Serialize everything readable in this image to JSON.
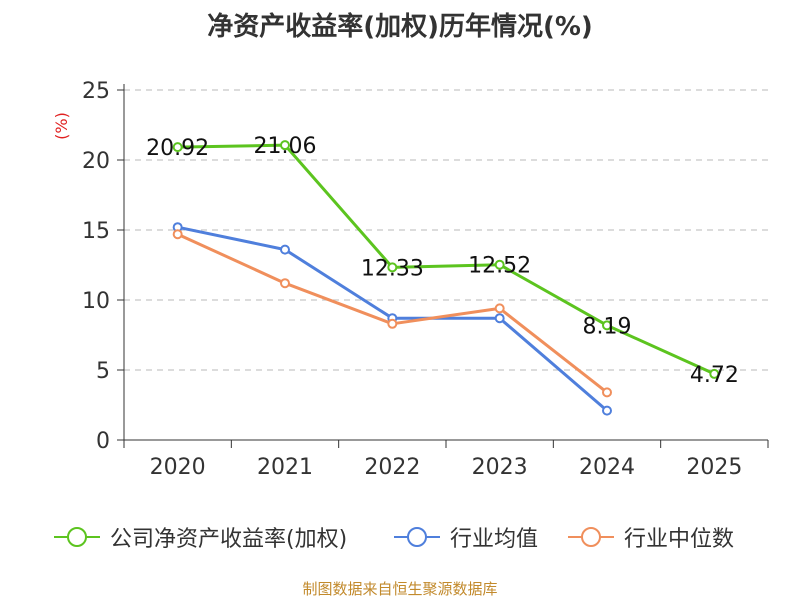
{
  "footer_text": "制图数据来自恒生聚源数据库",
  "colors": {
    "company": "#5cc41f",
    "industry_avg": "#4f7fdc",
    "industry_median": "#f08f5c",
    "ylabel": "#e02020",
    "grid": "#c8c8c8",
    "axis": "#333333"
  },
  "chart_data": {
    "type": "line",
    "title": "净资产收益率(加权)历年情况(%)",
    "xlabel": "",
    "ylabel": "(%)",
    "ylim": [
      0,
      25
    ],
    "yticks": [
      0,
      5,
      10,
      15,
      20,
      25
    ],
    "grid": true,
    "legend_position": "bottom",
    "categories": [
      "2020",
      "2021",
      "2022",
      "2023",
      "2024",
      "2025"
    ],
    "series": [
      {
        "name": "公司净资产收益率(加权)",
        "color_key": "company",
        "values": [
          20.92,
          21.06,
          12.33,
          12.52,
          8.19,
          4.72
        ],
        "labels": [
          "20.92",
          "21.06",
          "12.33",
          "12.52",
          "8.19",
          "4.72"
        ]
      },
      {
        "name": "行业均值",
        "color_key": "industry_avg",
        "values": [
          15.2,
          13.6,
          8.7,
          8.7,
          2.1,
          null
        ]
      },
      {
        "name": "行业中位数",
        "color_key": "industry_median",
        "values": [
          14.7,
          11.2,
          8.3,
          9.4,
          3.4,
          null
        ]
      }
    ]
  }
}
